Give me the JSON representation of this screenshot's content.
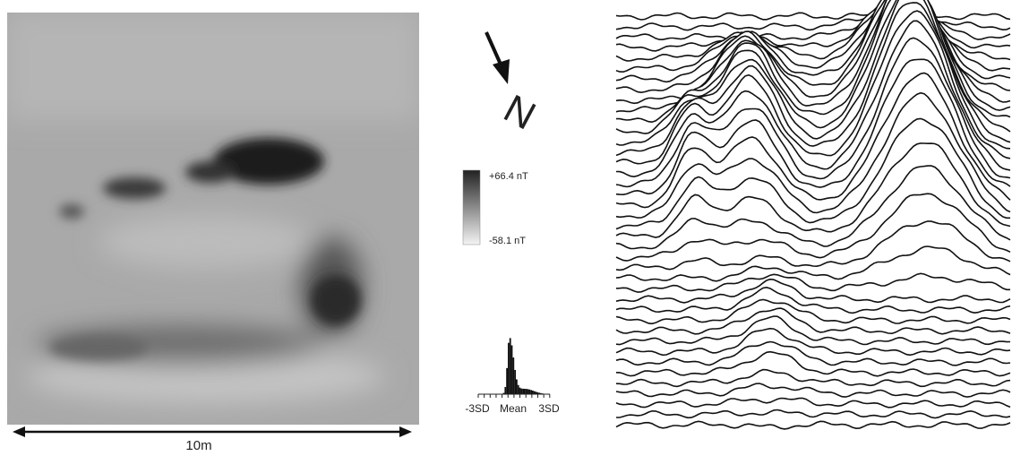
{
  "scale_bar": {
    "label": "10m"
  },
  "north_arrow": {
    "label": "N"
  },
  "color_scale": {
    "max_label": "+66.4 nT",
    "min_label": "-58.1 nT"
  },
  "histogram": {
    "labels": [
      "-3SD",
      "Mean",
      "3SD"
    ]
  }
}
